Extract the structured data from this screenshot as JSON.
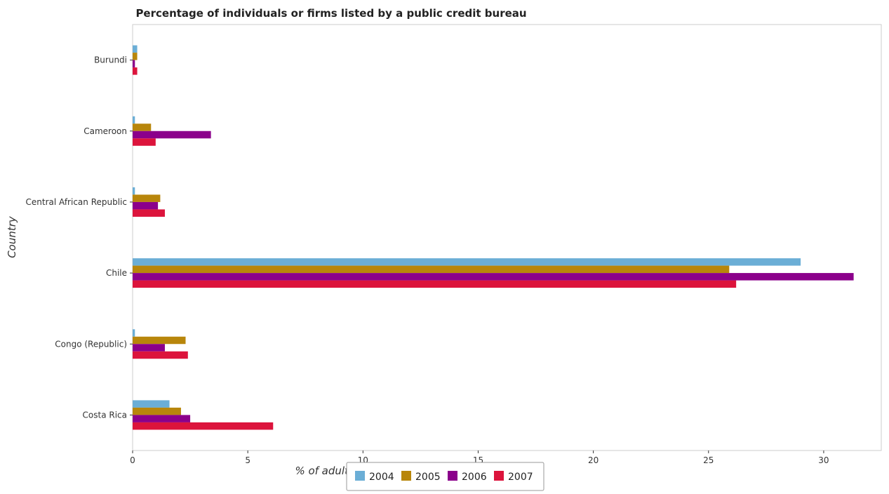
{
  "chart_data": {
    "type": "bar",
    "orientation": "horizontal",
    "title": "Percentage of individuals or firms listed by a public credit bureau",
    "xlabel": "% of adult population",
    "ylabel": "Country",
    "categories": [
      "Burundi",
      "Cameroon",
      "Central African Republic",
      "Chile",
      "Congo (Republic)",
      "Costa Rica"
    ],
    "xlim": [
      0,
      32.5
    ],
    "xticks": [
      0,
      5,
      10,
      15,
      20,
      25,
      30
    ],
    "grid": false,
    "legend_position": "bottom-center",
    "series": [
      {
        "name": "2004",
        "color": "#6baed6",
        "values": [
          0.2,
          0.1,
          0.1,
          29.0,
          0.1,
          1.6
        ]
      },
      {
        "name": "2005",
        "color": "#b8860b",
        "values": [
          0.2,
          0.8,
          1.2,
          25.9,
          2.3,
          2.1
        ]
      },
      {
        "name": "2006",
        "color": "#8b008b",
        "values": [
          0.1,
          3.4,
          1.1,
          31.3,
          1.4,
          2.5
        ]
      },
      {
        "name": "2007",
        "color": "#dc143c",
        "values": [
          0.2,
          1.0,
          1.4,
          26.2,
          2.4,
          6.1
        ]
      }
    ]
  }
}
